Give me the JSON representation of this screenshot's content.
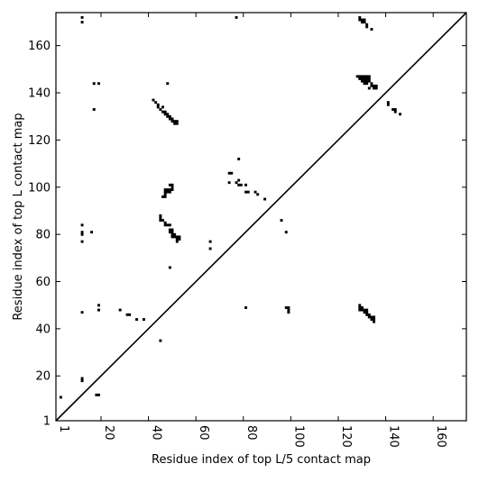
{
  "chart_data": {
    "type": "heatmap",
    "title": "",
    "xlabel": "Residue index of top L/5 contact map",
    "ylabel": "Residue index of top L contact map",
    "xlim": [
      1,
      174
    ],
    "ylim": [
      1,
      174
    ],
    "x_ticks": [
      1,
      20,
      40,
      60,
      80,
      100,
      120,
      140,
      160
    ],
    "x_tick_labels": [
      "1",
      "20",
      "40",
      "60",
      "80",
      "100",
      "120",
      "140",
      "160"
    ],
    "y_ticks": [
      1,
      20,
      40,
      60,
      80,
      100,
      120,
      140,
      160
    ],
    "y_tick_labels": [
      "1",
      "20",
      "40",
      "60",
      "80",
      "100",
      "120",
      "140",
      "160"
    ],
    "diagonal": true,
    "cell_color": "#000000",
    "background": "#ffffff",
    "cells_upper_left": [
      [
        12,
        170
      ],
      [
        12,
        172
      ],
      [
        17,
        144
      ],
      [
        19,
        144
      ],
      [
        17,
        133
      ],
      [
        48,
        144
      ],
      [
        42,
        137
      ],
      [
        43,
        136
      ],
      [
        44,
        135
      ],
      [
        44,
        134
      ],
      [
        45,
        133
      ],
      [
        46,
        134
      ],
      [
        46,
        132
      ],
      [
        47,
        131
      ],
      [
        47,
        132
      ],
      [
        48,
        130
      ],
      [
        48,
        131
      ],
      [
        49,
        129
      ],
      [
        49,
        130
      ],
      [
        50,
        128
      ],
      [
        50,
        129
      ],
      [
        51,
        127
      ],
      [
        51,
        128
      ],
      [
        52,
        127
      ],
      [
        52,
        128
      ],
      [
        78,
        112
      ],
      [
        74,
        106
      ],
      [
        75,
        106
      ],
      [
        74,
        102
      ],
      [
        77,
        102
      ],
      [
        78,
        101
      ],
      [
        78,
        103
      ],
      [
        79,
        101
      ],
      [
        81,
        101
      ],
      [
        81,
        98
      ],
      [
        82,
        98
      ],
      [
        85,
        98
      ],
      [
        86,
        97
      ],
      [
        89,
        95
      ],
      [
        46,
        96
      ],
      [
        47,
        96
      ],
      [
        47,
        97
      ],
      [
        47,
        98
      ],
      [
        47,
        99
      ],
      [
        48,
        98
      ],
      [
        49,
        98
      ],
      [
        49,
        99
      ],
      [
        50,
        99
      ],
      [
        50,
        100
      ],
      [
        50,
        101
      ],
      [
        49,
        101
      ],
      [
        48,
        99
      ],
      [
        12,
        84
      ],
      [
        12,
        81
      ],
      [
        12,
        80
      ],
      [
        12,
        77
      ],
      [
        16,
        81
      ],
      [
        45,
        88
      ],
      [
        45,
        87
      ],
      [
        45,
        86
      ],
      [
        46,
        86
      ],
      [
        47,
        85
      ],
      [
        47,
        84
      ],
      [
        48,
        84
      ],
      [
        49,
        84
      ],
      [
        49,
        82
      ],
      [
        49,
        81
      ],
      [
        50,
        82
      ],
      [
        50,
        81
      ],
      [
        50,
        80
      ],
      [
        50,
        79
      ],
      [
        51,
        80
      ],
      [
        51,
        79
      ],
      [
        52,
        79
      ],
      [
        52,
        78
      ],
      [
        52,
        77
      ],
      [
        53,
        79
      ],
      [
        53,
        78
      ],
      [
        66,
        77
      ],
      [
        66,
        74
      ],
      [
        96,
        86
      ],
      [
        98,
        81
      ],
      [
        49,
        66
      ],
      [
        19,
        50
      ],
      [
        19,
        48
      ],
      [
        12,
        47
      ],
      [
        28,
        48
      ],
      [
        31,
        46
      ],
      [
        32,
        46
      ],
      [
        35,
        44
      ],
      [
        38,
        44
      ],
      [
        45,
        35
      ],
      [
        18,
        12
      ],
      [
        19,
        12
      ],
      [
        12,
        19
      ],
      [
        12,
        18
      ],
      [
        3,
        11
      ]
    ],
    "cells_lower_right": [
      [
        77,
        172
      ],
      [
        129,
        172
      ],
      [
        129,
        171
      ],
      [
        130,
        171
      ],
      [
        130,
        170
      ],
      [
        131,
        170
      ],
      [
        131,
        171
      ],
      [
        132,
        169
      ],
      [
        132,
        168
      ],
      [
        134,
        167
      ],
      [
        128,
        147
      ],
      [
        129,
        147
      ],
      [
        129,
        146
      ],
      [
        130,
        147
      ],
      [
        130,
        146
      ],
      [
        130,
        145
      ],
      [
        131,
        147
      ],
      [
        131,
        146
      ],
      [
        131,
        145
      ],
      [
        131,
        144
      ],
      [
        132,
        147
      ],
      [
        132,
        146
      ],
      [
        132,
        145
      ],
      [
        132,
        144
      ],
      [
        133,
        147
      ],
      [
        133,
        146
      ],
      [
        133,
        145
      ],
      [
        133,
        142
      ],
      [
        134,
        144
      ],
      [
        134,
        143
      ],
      [
        135,
        143
      ],
      [
        135,
        142
      ],
      [
        136,
        143
      ],
      [
        136,
        142
      ],
      [
        141,
        136
      ],
      [
        141,
        135
      ],
      [
        143,
        133
      ],
      [
        144,
        133
      ],
      [
        144,
        132
      ],
      [
        146,
        131
      ],
      [
        98,
        49
      ],
      [
        99,
        49
      ],
      [
        99,
        48
      ],
      [
        99,
        47
      ],
      [
        81,
        49
      ],
      [
        129,
        50
      ],
      [
        129,
        49
      ],
      [
        129,
        48
      ],
      [
        130,
        49
      ],
      [
        130,
        48
      ],
      [
        131,
        48
      ],
      [
        131,
        47
      ],
      [
        132,
        48
      ],
      [
        132,
        47
      ],
      [
        132,
        46
      ],
      [
        133,
        46
      ],
      [
        133,
        45
      ],
      [
        134,
        45
      ],
      [
        134,
        44
      ],
      [
        135,
        45
      ],
      [
        135,
        44
      ],
      [
        135,
        43
      ]
    ]
  }
}
